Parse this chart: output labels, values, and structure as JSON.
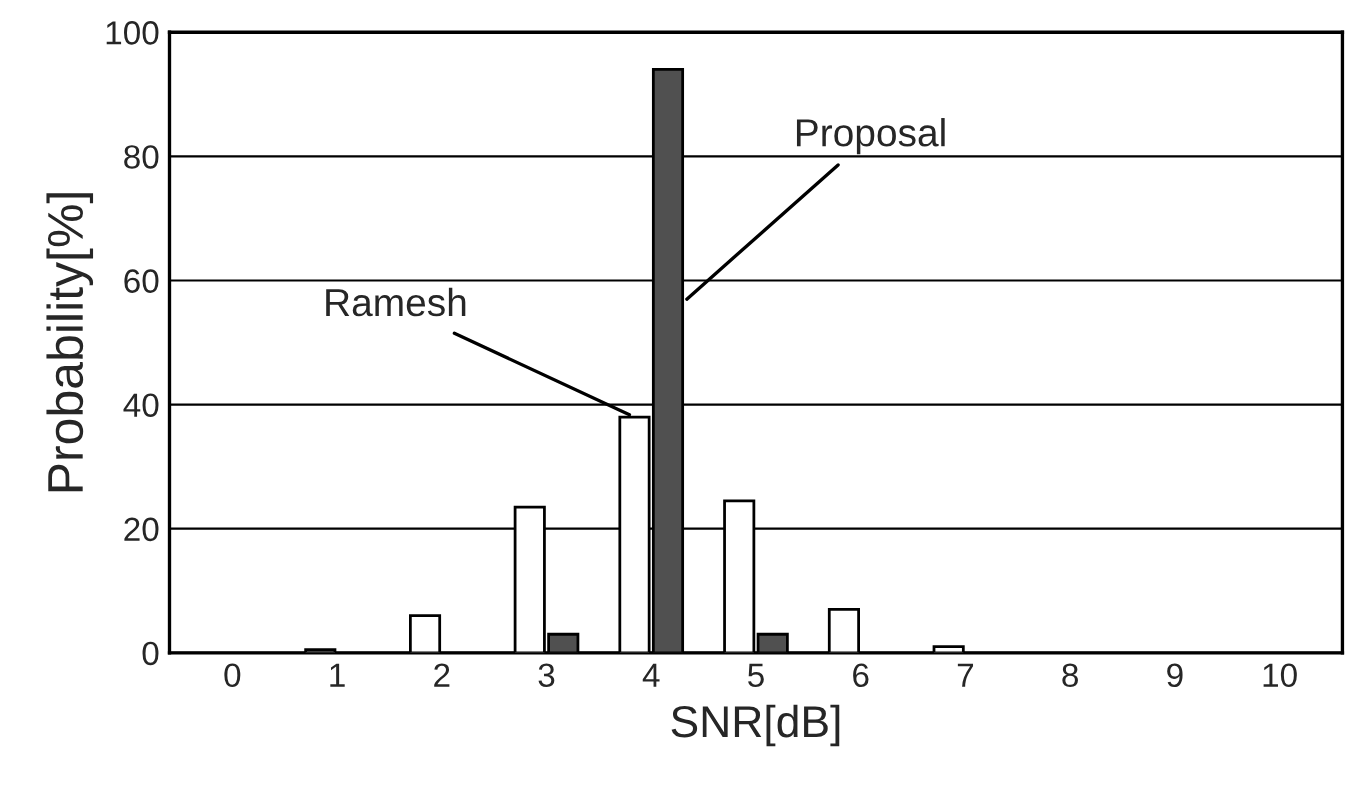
{
  "chart_data": {
    "type": "bar",
    "xlabel": "SNR[dB]",
    "ylabel": "Probability[%]",
    "categories": [
      "0",
      "1",
      "2",
      "3",
      "4",
      "5",
      "6",
      "7",
      "8",
      "9",
      "10"
    ],
    "series": [
      {
        "name": "Ramesh",
        "color": "#ffffff",
        "values": [
          0,
          0.5,
          6,
          23.5,
          38,
          24.5,
          7,
          1,
          0,
          0,
          0
        ]
      },
      {
        "name": "Proposal",
        "color": "#505050",
        "values": [
          0,
          0,
          0,
          3,
          94,
          3,
          0,
          0,
          0,
          0,
          0
        ]
      }
    ],
    "ylim": [
      0,
      100
    ],
    "yticks": [
      0,
      20,
      40,
      60,
      80,
      100
    ],
    "grid": "y"
  }
}
